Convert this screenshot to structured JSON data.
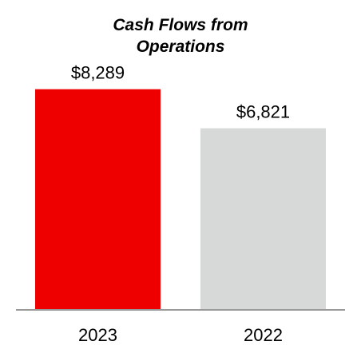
{
  "chart_data": {
    "type": "bar",
    "title_lines": [
      "Cash Flows from",
      "Operations"
    ],
    "categories": [
      "2023",
      "2022"
    ],
    "values": [
      8289,
      6821
    ],
    "value_labels": [
      "$8,289",
      "$6,821"
    ],
    "bar_colors": [
      "#ee0000",
      "#d7d8d8"
    ],
    "axis_color": "#999999",
    "ylim": [
      0,
      9000
    ],
    "grid": false,
    "legend": "none",
    "xlabel": "",
    "ylabel": ""
  }
}
